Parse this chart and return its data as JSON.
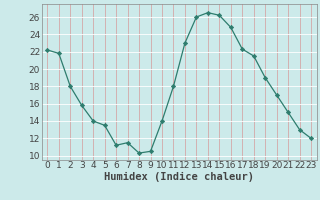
{
  "x": [
    0,
    1,
    2,
    3,
    4,
    5,
    6,
    7,
    8,
    9,
    10,
    11,
    12,
    13,
    14,
    15,
    16,
    17,
    18,
    19,
    20,
    21,
    22,
    23
  ],
  "y": [
    22.2,
    21.8,
    18.0,
    15.8,
    14.0,
    13.5,
    11.2,
    11.5,
    10.3,
    10.5,
    14.0,
    18.0,
    23.0,
    26.0,
    26.5,
    26.2,
    24.8,
    22.3,
    21.5,
    19.0,
    17.0,
    15.0,
    13.0,
    12.0
  ],
  "line_color": "#2e7d6e",
  "marker": "D",
  "marker_size": 2.2,
  "bg_color": "#cceaea",
  "grid_color": "#e8c8c8",
  "grid_color2": "#ffffff",
  "tick_color": "#444444",
  "xlabel": "Humidex (Indice chaleur)",
  "xlim": [
    -0.5,
    23.5
  ],
  "ylim": [
    9.5,
    27.5
  ],
  "yticks": [
    10,
    12,
    14,
    16,
    18,
    20,
    22,
    24,
    26
  ],
  "xticks": [
    0,
    1,
    2,
    3,
    4,
    5,
    6,
    7,
    8,
    9,
    10,
    11,
    12,
    13,
    14,
    15,
    16,
    17,
    18,
    19,
    20,
    21,
    22,
    23
  ],
  "xlabel_fontsize": 7.5,
  "tick_fontsize": 6.5
}
